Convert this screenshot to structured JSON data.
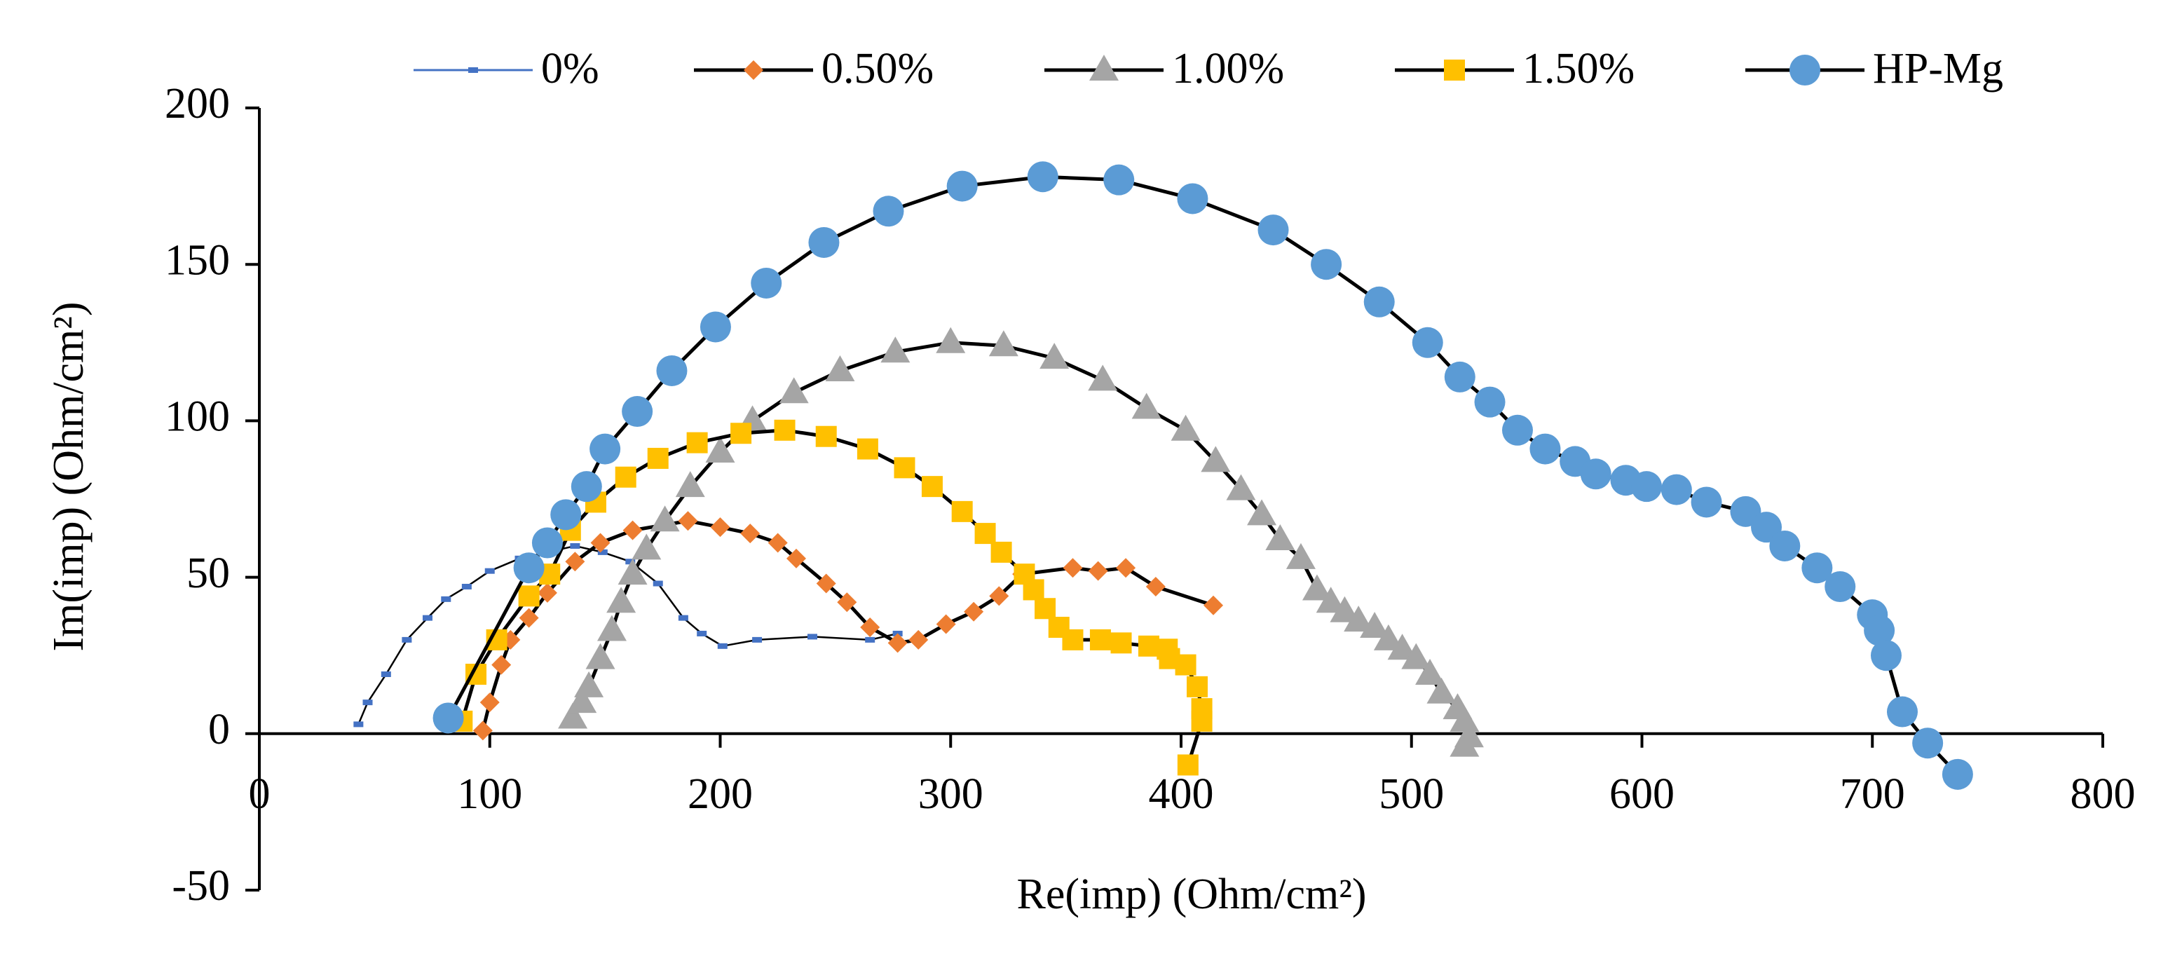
{
  "chart_data": {
    "type": "line",
    "xlabel": "Re(imp) (Ohm/cm²)",
    "ylabel": "Im(imp) (Ohm/cm²)",
    "xlim": [
      0,
      800
    ],
    "xticks": [
      0,
      100,
      200,
      300,
      400,
      500,
      600,
      700,
      800
    ],
    "ylim": [
      -50,
      200
    ],
    "yticks": [
      -50,
      0,
      50,
      100,
      150,
      200
    ],
    "line_color": "#000000",
    "legend": "top",
    "series": [
      {
        "name": "0%",
        "color": "#4472c4",
        "marker": "dash",
        "x": [
          43,
          47,
          55,
          64,
          73,
          81,
          90,
          100,
          113,
          125,
          137,
          149,
          161,
          173,
          184,
          192,
          201,
          216,
          240,
          265,
          277
        ],
        "values": [
          3,
          10,
          19,
          30,
          37,
          43,
          47,
          52,
          56,
          58,
          60,
          58,
          55,
          48,
          37,
          32,
          28,
          30,
          31,
          30,
          32
        ]
      },
      {
        "name": "0.50%",
        "color": "#ed7d31",
        "marker": "diamond",
        "x": [
          97,
          100,
          105,
          109,
          117,
          125,
          137,
          148,
          162,
          186,
          200,
          213,
          225,
          233,
          246,
          255,
          265,
          277,
          286,
          298,
          310,
          321,
          331,
          353,
          364,
          376,
          389,
          414
        ],
        "values": [
          1,
          10,
          22,
          30,
          37,
          45,
          55,
          61,
          65,
          68,
          66,
          64,
          61,
          56,
          48,
          42,
          34,
          29,
          30,
          35,
          39,
          44,
          51,
          53,
          52,
          53,
          47,
          41
        ]
      },
      {
        "name": "1.00%",
        "color": "#a5a5a5",
        "marker": "triangle",
        "x": [
          136,
          140,
          143,
          148,
          153,
          157,
          162,
          168,
          176,
          187,
          200,
          214,
          232,
          252,
          276,
          300,
          323,
          345,
          366,
          385,
          402,
          415,
          426,
          435,
          443,
          452,
          459,
          465,
          471,
          477,
          484,
          490,
          496,
          502,
          508,
          513,
          520,
          523,
          525,
          523
        ],
        "values": [
          5,
          10,
          15,
          24,
          33,
          42,
          51,
          59,
          68,
          79,
          90,
          100,
          109,
          116,
          122,
          125,
          124,
          120,
          113,
          104,
          97,
          87,
          78,
          70,
          62,
          56,
          46,
          42,
          39,
          36,
          34,
          30,
          27,
          24,
          19,
          13,
          8,
          4,
          -1,
          -4
        ]
      },
      {
        "name": "1.50%",
        "color": "#ffc000",
        "marker": "square",
        "x": [
          88,
          94,
          103,
          117,
          126,
          135,
          146,
          159,
          173,
          190,
          209,
          228,
          246,
          264,
          280,
          292,
          305,
          315,
          322,
          332,
          336,
          341,
          347,
          353,
          365,
          374,
          386,
          394,
          395,
          402,
          407,
          409,
          409,
          403
        ],
        "values": [
          4,
          19,
          30,
          44,
          51,
          65,
          74,
          82,
          88,
          93,
          96,
          97,
          95,
          91,
          85,
          79,
          71,
          64,
          58,
          51,
          46,
          40,
          34,
          30,
          30,
          29,
          28,
          27,
          24,
          22,
          15,
          8,
          4,
          -10
        ]
      },
      {
        "name": "HP-Mg",
        "color": "#5b9bd5",
        "marker": "circle",
        "x": [
          82,
          117,
          125,
          133,
          142,
          150,
          164,
          179,
          198,
          220,
          245,
          273,
          305,
          340,
          373,
          405,
          440,
          463,
          486,
          507,
          521,
          534,
          546,
          558,
          571,
          580,
          593,
          602,
          615,
          628,
          645,
          654,
          662,
          676,
          686,
          700,
          703,
          706,
          713,
          724,
          737
        ],
        "values": [
          5,
          53,
          61,
          70,
          79,
          91,
          103,
          116,
          130,
          144,
          157,
          167,
          175,
          178,
          177,
          171,
          161,
          150,
          138,
          125,
          114,
          106,
          97,
          91,
          87,
          83,
          81,
          79,
          78,
          74,
          71,
          66,
          60,
          53,
          47,
          38,
          33,
          25,
          7,
          -3,
          -13
        ]
      }
    ]
  }
}
